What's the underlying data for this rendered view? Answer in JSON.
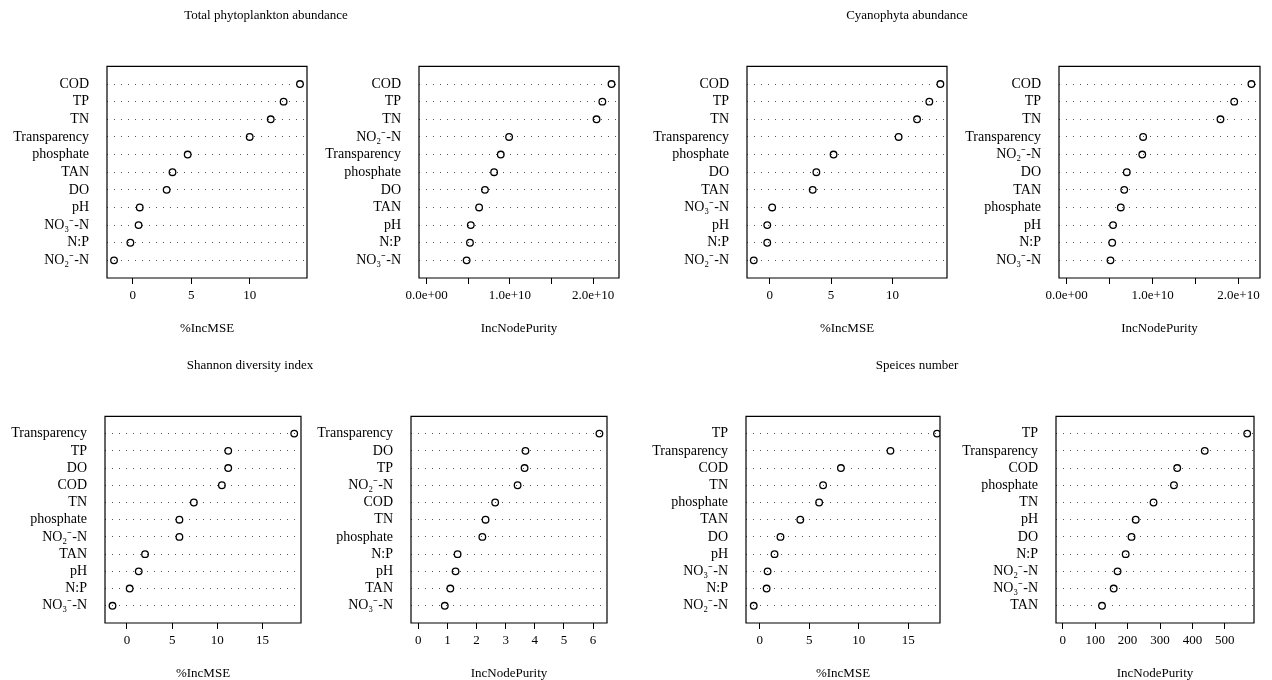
{
  "chart_data": [
    {
      "type": "scatter",
      "title": "Total phytoplankton abundance",
      "xlabel": "%IncMSE",
      "orientation": "horizontal",
      "marker": "circle",
      "grid": "y",
      "color": "#000000",
      "categories": [
        "COD",
        "TP",
        "TN",
        "Transparency",
        "phosphate",
        "TAN",
        "DO",
        "pH",
        "NO₃⁻-N",
        "N:P",
        "NO₂⁻-N"
      ],
      "values": [
        14.3,
        12.9,
        11.8,
        10.0,
        4.7,
        3.4,
        2.9,
        0.6,
        0.5,
        -0.2,
        -1.6
      ],
      "xlim": [
        -2.2,
        14.9
      ],
      "xticks": [
        0,
        5,
        10
      ]
    },
    {
      "type": "scatter",
      "xlabel": "IncNodePurity",
      "orientation": "horizontal",
      "marker": "circle",
      "grid": "y",
      "color": "#000000",
      "categories": [
        "COD",
        "TP",
        "TN",
        "NO₂⁻-N",
        "Transparency",
        "phosphate",
        "DO",
        "TAN",
        "pH",
        "N:P",
        "NO₃⁻-N"
      ],
      "values": [
        22200000000,
        21100000000,
        20400000000,
        9900000000,
        8900000000,
        8100000000,
        7000000000,
        6300000000,
        5300000000,
        5200000000,
        4800000000
      ],
      "xlim": [
        -920000000,
        23100000000
      ],
      "xticks": [
        {
          "value": 0,
          "label": "0.0e+00"
        },
        {
          "value": 5000000000,
          "label": null
        },
        {
          "value": 10000000000,
          "label": "1.0e+10"
        },
        {
          "value": 15000000000,
          "label": null
        },
        {
          "value": 20000000000,
          "label": "2.0e+10"
        }
      ]
    },
    {
      "type": "scatter",
      "title": "Cyanophyta abundance",
      "xlabel": "%IncMSE",
      "orientation": "horizontal",
      "marker": "circle",
      "grid": "y",
      "color": "#000000",
      "categories": [
        "COD",
        "TP",
        "TN",
        "Transparency",
        "phosphate",
        "DO",
        "TAN",
        "NO₃⁻-N",
        "pH",
        "N:P",
        "NO₂⁻-N"
      ],
      "values": [
        13.9,
        13.0,
        12.0,
        10.5,
        5.2,
        3.8,
        3.5,
        0.2,
        -0.2,
        -0.2,
        -1.3
      ],
      "xlim": [
        -1.85,
        14.44
      ],
      "xticks": [
        0,
        5,
        10
      ]
    },
    {
      "type": "scatter",
      "xlabel": "IncNodePurity",
      "orientation": "horizontal",
      "marker": "circle",
      "grid": "y",
      "color": "#000000",
      "categories": [
        "COD",
        "TP",
        "TN",
        "Transparency",
        "NO₂⁻-N",
        "DO",
        "TAN",
        "phosphate",
        "pH",
        "N:P",
        "NO₃⁻-N"
      ],
      "values": [
        21500000000,
        19500000000,
        17900000000,
        8900000000,
        8800000000,
        7000000000,
        6700000000,
        6300000000,
        5400000000,
        5300000000,
        5100000000
      ],
      "xlim": [
        -890000000,
        22500000000
      ],
      "xticks": [
        {
          "value": 0,
          "label": "0.0e+00"
        },
        {
          "value": 5000000000,
          "label": null
        },
        {
          "value": 10000000000,
          "label": "1.0e+10"
        },
        {
          "value": 15000000000,
          "label": null
        },
        {
          "value": 20000000000,
          "label": "2.0e+10"
        }
      ]
    },
    {
      "type": "scatter",
      "title": "Shannon diversity index",
      "xlabel": "%IncMSE",
      "orientation": "horizontal",
      "marker": "circle",
      "grid": "y",
      "color": "#000000",
      "categories": [
        "Transparency",
        "TP",
        "DO",
        "COD",
        "TN",
        "phosphate",
        "NO₂⁻-N",
        "TAN",
        "pH",
        "N:P",
        "NO₃⁻-N"
      ],
      "values": [
        18.5,
        11.2,
        11.2,
        10.5,
        7.4,
        5.8,
        5.8,
        2.0,
        1.3,
        0.3,
        -1.6
      ],
      "xlim": [
        -2.43,
        19.25
      ],
      "xticks": [
        0,
        5,
        10,
        15
      ]
    },
    {
      "type": "scatter",
      "xlabel": "IncNodePurity",
      "orientation": "horizontal",
      "marker": "circle",
      "grid": "y",
      "color": "#000000",
      "categories": [
        "Transparency",
        "DO",
        "TP",
        "NO₂⁻-N",
        "COD",
        "TN",
        "phosphate",
        "N:P",
        "pH",
        "TAN",
        "NO₃⁻-N"
      ],
      "values": [
        6.22,
        3.68,
        3.65,
        3.41,
        2.64,
        2.31,
        2.2,
        1.35,
        1.28,
        1.1,
        0.91
      ],
      "xlim": [
        -0.25,
        6.48
      ],
      "xticks": [
        0,
        1,
        2,
        3,
        4,
        5,
        6
      ]
    },
    {
      "type": "scatter",
      "title": "Speices number",
      "xlabel": "%IncMSE",
      "orientation": "horizontal",
      "marker": "circle",
      "grid": "y",
      "color": "#000000",
      "categories": [
        "TP",
        "Transparency",
        "COD",
        "TN",
        "phosphate",
        "TAN",
        "DO",
        "pH",
        "NO₃⁻-N",
        "N:P",
        "NO₂⁻-N"
      ],
      "values": [
        17.9,
        13.2,
        8.2,
        6.4,
        6.0,
        4.1,
        2.1,
        1.5,
        0.8,
        0.7,
        -0.6
      ],
      "xlim": [
        -1.38,
        18.2
      ],
      "xticks": [
        0,
        5,
        10,
        15
      ]
    },
    {
      "type": "scatter",
      "xlabel": "IncNodePurity",
      "orientation": "horizontal",
      "marker": "circle",
      "grid": "y",
      "color": "#000000",
      "categories": [
        "TP",
        "Transparency",
        "COD",
        "phosphate",
        "TN",
        "pH",
        "DO",
        "N:P",
        "NO₂⁻-N",
        "NO₃⁻-N",
        "TAN"
      ],
      "values": [
        569,
        438,
        353,
        343,
        280,
        225,
        212,
        194,
        169,
        157,
        121
      ],
      "xlim": [
        -21,
        590
      ],
      "xticks": [
        0,
        100,
        200,
        300,
        400,
        500
      ]
    }
  ]
}
